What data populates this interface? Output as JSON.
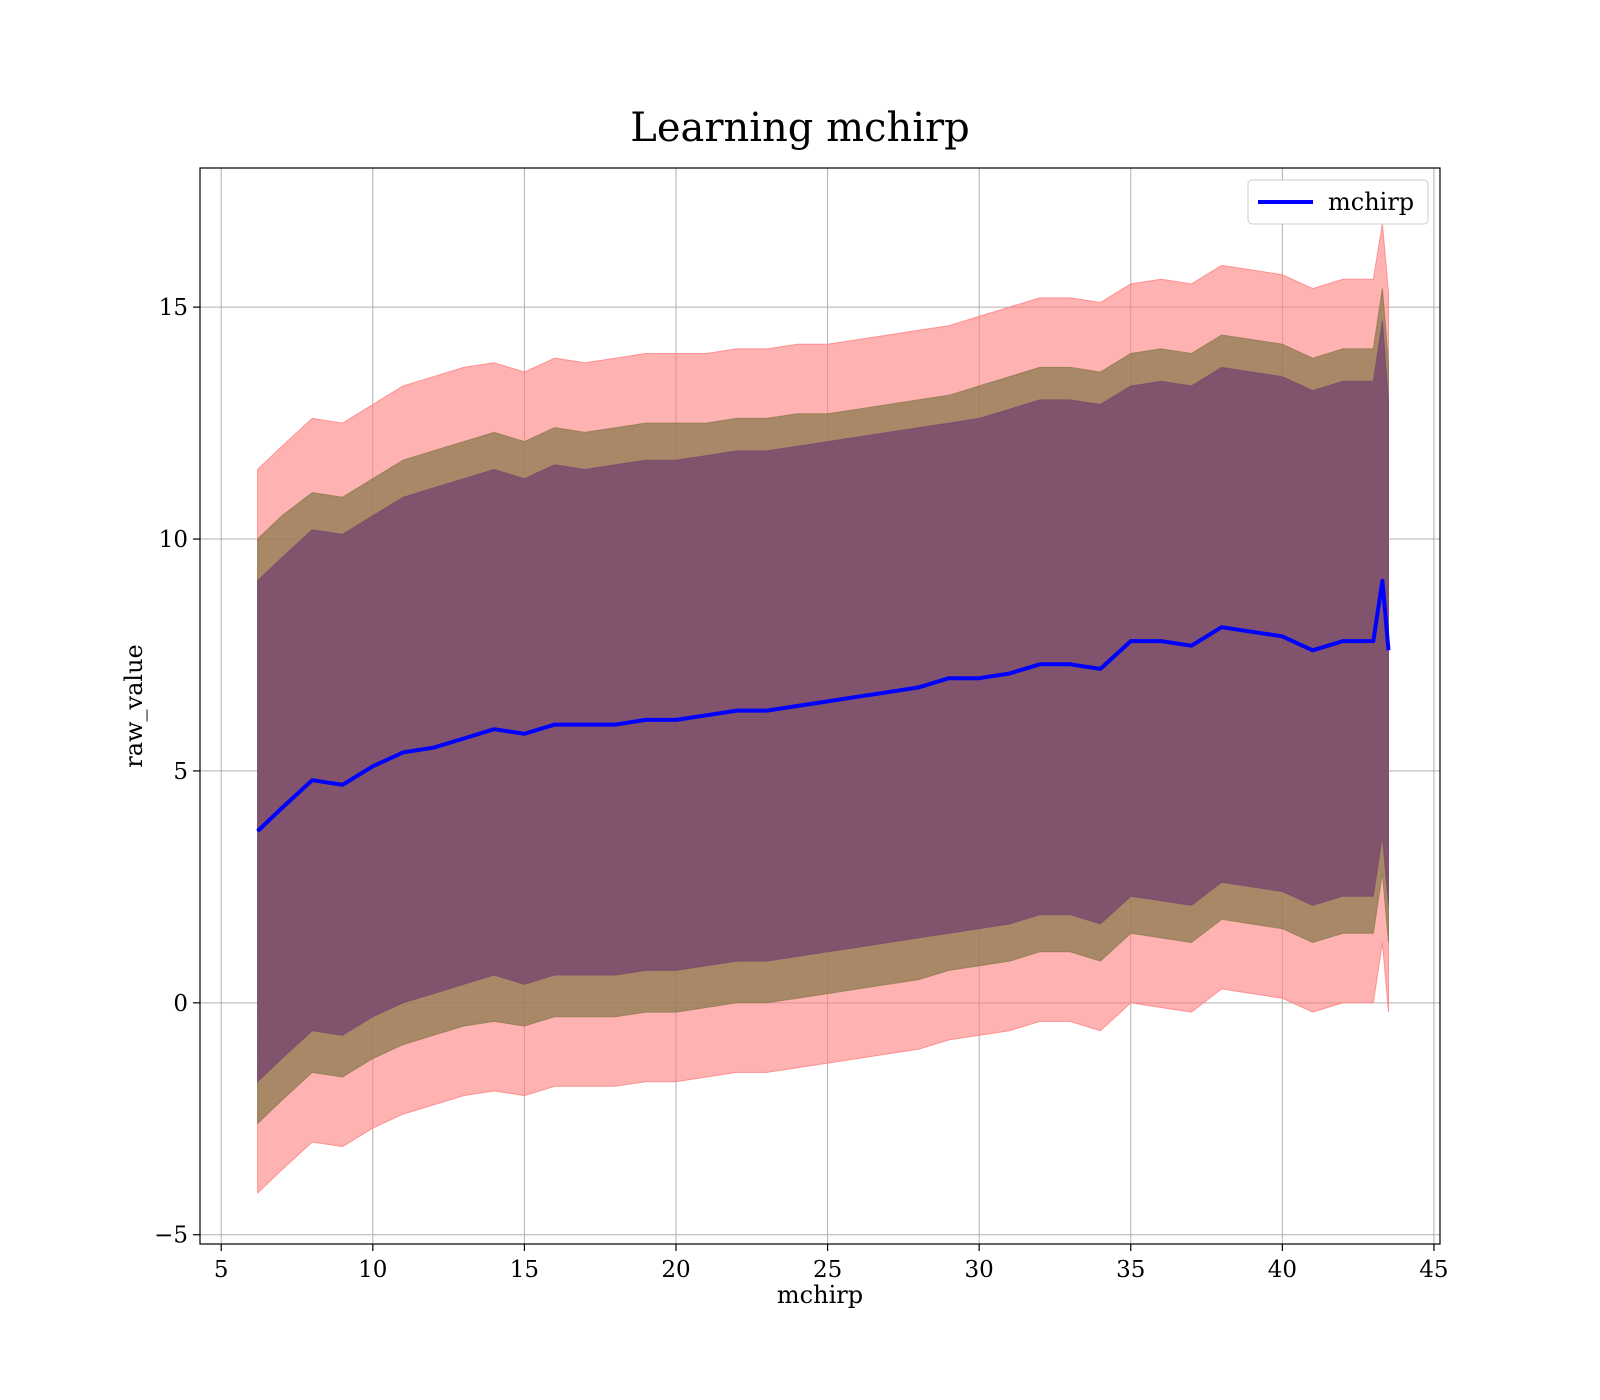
{
  "chart_data": {
    "type": "area",
    "title": "Learning mchirp",
    "xlabel": "mchirp",
    "ylabel": "raw_value",
    "xlim": [
      4.3,
      45.2
    ],
    "ylim": [
      -5.2,
      18.0
    ],
    "xticks": [
      5,
      10,
      15,
      20,
      25,
      30,
      35,
      40,
      45
    ],
    "yticks": [
      -5,
      0,
      5,
      10,
      15
    ],
    "grid": true,
    "legend": {
      "position": "top-right",
      "entries": [
        "mchirp"
      ]
    },
    "colors": {
      "mean_line": "#0000ff",
      "band_outer": "#ff7f7f",
      "band_middle": "#8c7a4f",
      "band_inner": "#7a4a6e"
    },
    "series": [
      {
        "name": "mchirp",
        "kind": "line",
        "x": [
          6.2,
          7,
          8,
          9,
          10,
          11,
          12,
          13,
          14,
          15,
          16,
          17,
          18,
          19,
          20,
          21,
          22,
          23,
          24,
          25,
          26,
          27,
          28,
          29,
          30,
          31,
          32,
          33,
          34,
          35,
          36,
          37,
          38,
          39,
          40,
          41,
          42,
          43,
          43.3,
          43.5
        ],
        "y": [
          3.7,
          4.2,
          4.8,
          4.7,
          5.1,
          5.4,
          5.5,
          5.7,
          5.9,
          5.8,
          6.0,
          6.0,
          6.0,
          6.1,
          6.1,
          6.2,
          6.3,
          6.3,
          6.4,
          6.5,
          6.6,
          6.7,
          6.8,
          7.0,
          7.0,
          7.1,
          7.3,
          7.3,
          7.2,
          7.8,
          7.8,
          7.7,
          8.1,
          8.0,
          7.9,
          7.6,
          7.8,
          7.8,
          9.1,
          7.6
        ]
      }
    ],
    "bands": [
      {
        "kind": "fill_between",
        "x": [
          6.2,
          7,
          8,
          9,
          10,
          11,
          12,
          13,
          14,
          15,
          16,
          17,
          18,
          19,
          20,
          21,
          22,
          23,
          24,
          25,
          26,
          27,
          28,
          29,
          30,
          31,
          32,
          33,
          34,
          35,
          36,
          37,
          38,
          39,
          40,
          41,
          42,
          43,
          43.3,
          43.5
        ],
        "upper": [
          11.5,
          12.0,
          12.6,
          12.5,
          12.9,
          13.3,
          13.5,
          13.7,
          13.8,
          13.6,
          13.9,
          13.8,
          13.9,
          14.0,
          14.0,
          14.0,
          14.1,
          14.1,
          14.2,
          14.2,
          14.3,
          14.4,
          14.5,
          14.6,
          14.8,
          15.0,
          15.2,
          15.2,
          15.1,
          15.5,
          15.6,
          15.5,
          15.9,
          15.8,
          15.7,
          15.4,
          15.6,
          15.6,
          16.8,
          15.3
        ],
        "lower": [
          -4.1,
          -3.6,
          -3.0,
          -3.1,
          -2.7,
          -2.4,
          -2.2,
          -2.0,
          -1.9,
          -2.0,
          -1.8,
          -1.8,
          -1.8,
          -1.7,
          -1.7,
          -1.6,
          -1.5,
          -1.5,
          -1.4,
          -1.3,
          -1.2,
          -1.1,
          -1.0,
          -0.8,
          -0.7,
          -0.6,
          -0.4,
          -0.4,
          -0.6,
          0.0,
          -0.1,
          -0.2,
          0.3,
          0.2,
          0.1,
          -0.2,
          0.0,
          0.0,
          1.3,
          -0.2
        ]
      },
      {
        "kind": "fill_between",
        "x": [
          6.2,
          7,
          8,
          9,
          10,
          11,
          12,
          13,
          14,
          15,
          16,
          17,
          18,
          19,
          20,
          21,
          22,
          23,
          24,
          25,
          26,
          27,
          28,
          29,
          30,
          31,
          32,
          33,
          34,
          35,
          36,
          37,
          38,
          39,
          40,
          41,
          42,
          43,
          43.3,
          43.5
        ],
        "upper": [
          10.0,
          10.5,
          11.0,
          10.9,
          11.3,
          11.7,
          11.9,
          12.1,
          12.3,
          12.1,
          12.4,
          12.3,
          12.4,
          12.5,
          12.5,
          12.5,
          12.6,
          12.6,
          12.7,
          12.7,
          12.8,
          12.9,
          13.0,
          13.1,
          13.3,
          13.5,
          13.7,
          13.7,
          13.6,
          14.0,
          14.1,
          14.0,
          14.4,
          14.3,
          14.2,
          13.9,
          14.1,
          14.1,
          15.4,
          13.8
        ],
        "lower": [
          -2.6,
          -2.1,
          -1.5,
          -1.6,
          -1.2,
          -0.9,
          -0.7,
          -0.5,
          -0.4,
          -0.5,
          -0.3,
          -0.3,
          -0.3,
          -0.2,
          -0.2,
          -0.1,
          0.0,
          0.0,
          0.1,
          0.2,
          0.3,
          0.4,
          0.5,
          0.7,
          0.8,
          0.9,
          1.1,
          1.1,
          0.9,
          1.5,
          1.4,
          1.3,
          1.8,
          1.7,
          1.6,
          1.3,
          1.5,
          1.5,
          2.8,
          1.3
        ]
      },
      {
        "kind": "fill_between",
        "x": [
          6.2,
          7,
          8,
          9,
          10,
          11,
          12,
          13,
          14,
          15,
          16,
          17,
          18,
          19,
          20,
          21,
          22,
          23,
          24,
          25,
          26,
          27,
          28,
          29,
          30,
          31,
          32,
          33,
          34,
          35,
          36,
          37,
          38,
          39,
          40,
          41,
          42,
          43,
          43.3,
          43.5
        ],
        "upper": [
          9.1,
          9.6,
          10.2,
          10.1,
          10.5,
          10.9,
          11.1,
          11.3,
          11.5,
          11.3,
          11.6,
          11.5,
          11.6,
          11.7,
          11.7,
          11.8,
          11.9,
          11.9,
          12.0,
          12.1,
          12.2,
          12.3,
          12.4,
          12.5,
          12.6,
          12.8,
          13.0,
          13.0,
          12.9,
          13.3,
          13.4,
          13.3,
          13.7,
          13.6,
          13.5,
          13.2,
          13.4,
          13.4,
          14.7,
          13.0
        ],
        "lower": [
          -1.7,
          -1.2,
          -0.6,
          -0.7,
          -0.3,
          0.0,
          0.2,
          0.4,
          0.6,
          0.4,
          0.6,
          0.6,
          0.6,
          0.7,
          0.7,
          0.8,
          0.9,
          0.9,
          1.0,
          1.1,
          1.2,
          1.3,
          1.4,
          1.5,
          1.6,
          1.7,
          1.9,
          1.9,
          1.7,
          2.3,
          2.2,
          2.1,
          2.6,
          2.5,
          2.4,
          2.1,
          2.3,
          2.3,
          3.6,
          2.1
        ]
      }
    ]
  }
}
